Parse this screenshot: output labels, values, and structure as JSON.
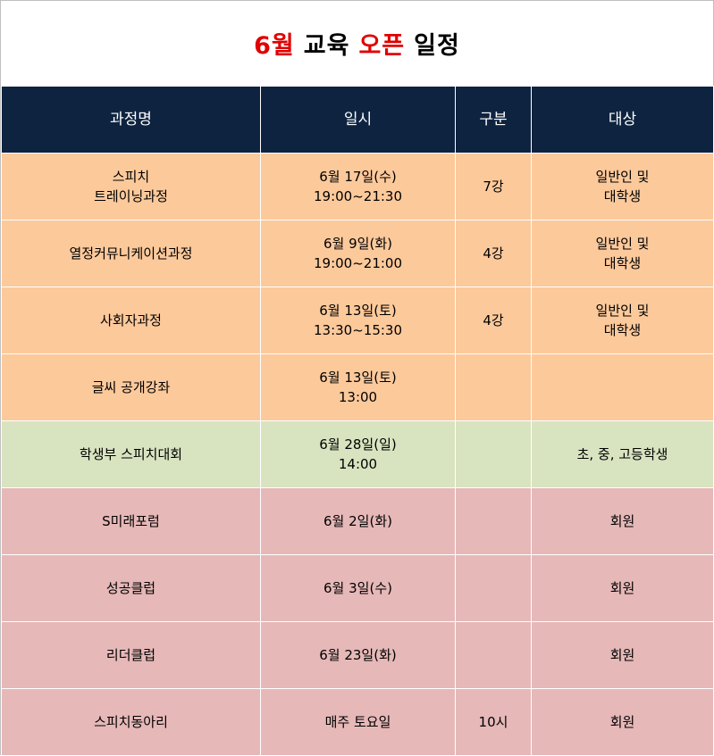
{
  "title": {
    "part1": "6월",
    "part2": "교육",
    "part3": "오픈",
    "part4": "일정"
  },
  "table": {
    "headers": [
      "과정명",
      "일시",
      "구분",
      "대상"
    ],
    "rows": [
      {
        "group": "orange",
        "course": [
          "스피치",
          "트레이닝과정"
        ],
        "datetime": [
          "6월 17일(수)",
          "19:00~21:30"
        ],
        "type": "7강",
        "target": [
          "일반인 및",
          "대학생"
        ]
      },
      {
        "group": "orange",
        "course": [
          "열정커뮤니케이션과정"
        ],
        "datetime": [
          "6월 9일(화)",
          "19:00~21:00"
        ],
        "type": "4강",
        "target": [
          "일반인 및",
          "대학생"
        ]
      },
      {
        "group": "orange",
        "course": [
          "사회자과정"
        ],
        "datetime": [
          "6월 13일(토)",
          "13:30~15:30"
        ],
        "type": "4강",
        "target": [
          "일반인 및",
          "대학생"
        ]
      },
      {
        "group": "orange",
        "course": [
          "글씨 공개강좌"
        ],
        "datetime": [
          "6월 13일(토)",
          "13:00"
        ],
        "type": "",
        "target": []
      },
      {
        "group": "green",
        "course": [
          "학생부 스피치대회"
        ],
        "datetime": [
          "6월 28일(일)",
          "14:00"
        ],
        "type": "",
        "target": [
          "초, 중, 고등학생"
        ]
      },
      {
        "group": "pink",
        "course": [
          "S미래포럼"
        ],
        "datetime": [
          "6월 2일(화)"
        ],
        "type": "",
        "target": [
          "회원"
        ]
      },
      {
        "group": "pink",
        "course": [
          "성공클럽"
        ],
        "datetime": [
          "6월 3일(수)"
        ],
        "type": "",
        "target": [
          "회원"
        ]
      },
      {
        "group": "pink",
        "course": [
          "리더클럽"
        ],
        "datetime": [
          "6월 23일(화)"
        ],
        "type": "",
        "target": [
          "회원"
        ]
      },
      {
        "group": "pink",
        "course": [
          "스피치동아리"
        ],
        "datetime": [
          "매주 토요일"
        ],
        "type": "10시",
        "target": [
          "회원"
        ]
      }
    ]
  }
}
